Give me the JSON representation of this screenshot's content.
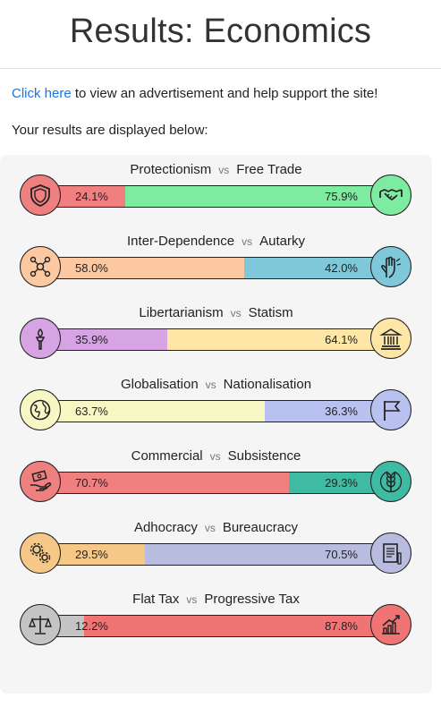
{
  "page": {
    "title": "Results: Economics",
    "ad_link": "Click here",
    "ad_text": " to view an advertisement and help support the site!",
    "intro": "Your results are displayed below:"
  },
  "axes": [
    {
      "left": "Protectionism",
      "right": "Free Trade",
      "vs": "vs",
      "left_pct": "24.1%",
      "right_pct": "75.9%",
      "left_value": 24.1,
      "left_color": "#f08080",
      "right_color": "#7deba0",
      "left_icon": "shield-icon",
      "right_icon": "handshake-icon"
    },
    {
      "left": "Inter-Dependence",
      "right": "Autarky",
      "vs": "vs",
      "left_pct": "58.0%",
      "right_pct": "42.0%",
      "left_value": 58.0,
      "left_color": "#fbc8a2",
      "right_color": "#7ec8da",
      "left_icon": "network-icon",
      "right_icon": "hand-icon"
    },
    {
      "left": "Libertarianism",
      "right": "Statism",
      "vs": "vs",
      "left_pct": "35.9%",
      "right_pct": "64.1%",
      "left_value": 35.9,
      "left_color": "#d6a3e3",
      "right_color": "#fde6a6",
      "left_icon": "torch-icon",
      "right_icon": "government-building-icon"
    },
    {
      "left": "Globalisation",
      "right": "Nationalisation",
      "vs": "vs",
      "left_pct": "63.7%",
      "right_pct": "36.3%",
      "left_value": 63.7,
      "left_color": "#f7f7c4",
      "right_color": "#b8c1ef",
      "left_icon": "globe-icon",
      "right_icon": "flag-icon"
    },
    {
      "left": "Commercial",
      "right": "Subsistence",
      "vs": "vs",
      "left_pct": "70.7%",
      "right_pct": "29.3%",
      "left_value": 70.7,
      "left_color": "#f08080",
      "right_color": "#40bba3",
      "left_icon": "money-hand-icon",
      "right_icon": "wheat-icon"
    },
    {
      "left": "Adhocracy",
      "right": "Bureaucracy",
      "vs": "vs",
      "left_pct": "29.5%",
      "right_pct": "70.5%",
      "left_value": 29.5,
      "left_color": "#f5c888",
      "right_color": "#b8bddf",
      "left_icon": "gears-icon",
      "right_icon": "document-icon"
    },
    {
      "left": "Flat Tax",
      "right": "Progressive Tax",
      "vs": "vs",
      "left_pct": "12.2%",
      "right_pct": "87.8%",
      "left_value": 12.2,
      "left_color": "#c4c4c4",
      "right_color": "#f07474",
      "left_icon": "scales-icon",
      "right_icon": "rising-chart-icon"
    }
  ]
}
